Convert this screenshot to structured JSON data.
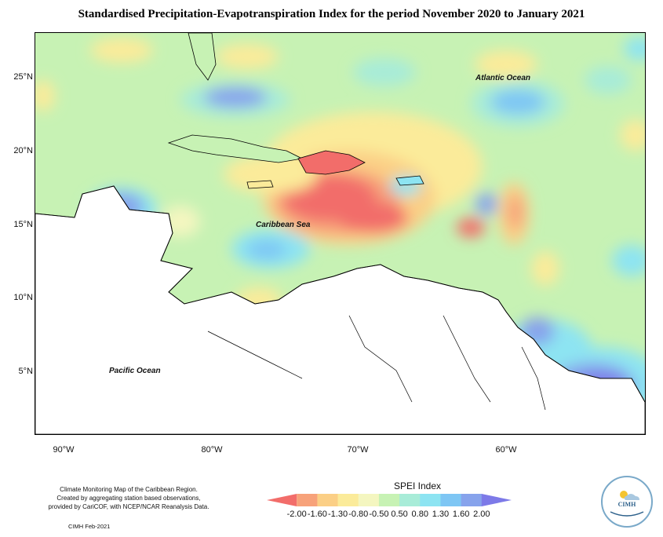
{
  "title": "Standardised Precipitation-Evapotranspiration Index for the period November 2020 to January 2021",
  "latitude_labels": [
    "25°N",
    "20°N",
    "15°N",
    "10°N",
    "5°N"
  ],
  "longitude_labels": [
    "90°W",
    "80°W",
    "70°W",
    "60°W"
  ],
  "place_labels": {
    "atlantic": "Atlantic Ocean",
    "caribbean": "Caribbean Sea",
    "pacific": "Pacific Ocean"
  },
  "legend": {
    "title": "SPEI Index",
    "ticks": [
      "-2.00",
      "-1.60",
      "-1.30",
      "-0.80",
      "-0.50",
      "0.50",
      "0.80",
      "1.30",
      "1.60",
      "2.00"
    ],
    "colors": [
      "#f26d6a",
      "#f7a27a",
      "#fbcf86",
      "#fbeb9a",
      "#f4f6c0",
      "#c7f2b4",
      "#a8ecd8",
      "#8de4f2",
      "#7ec6f4",
      "#87a3ec",
      "#7d7ae8"
    ]
  },
  "credits": {
    "line1": "Climate Monitoring Map of the Caribbean Region.",
    "line2": "Created by aggregating station based observations,",
    "line3": "provided by CariCOF, with NCEP/NCAR Reanalysis Data.",
    "stamp": "CIMH Feb-2021"
  },
  "logo": {
    "text": "CIMH"
  }
}
